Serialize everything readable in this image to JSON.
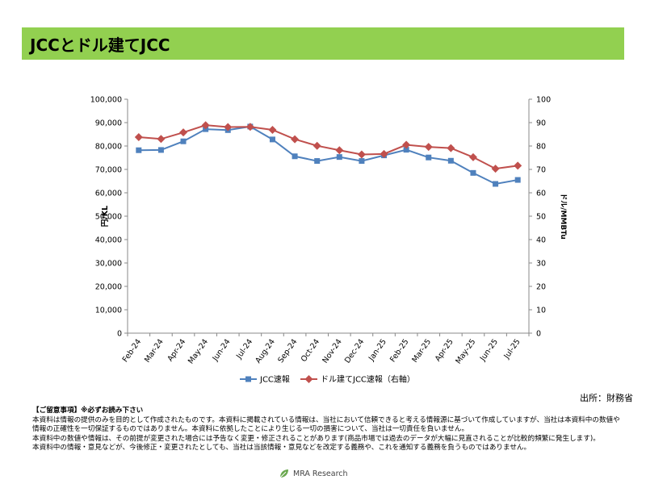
{
  "header": {
    "title": "JCCとドル建てJCC"
  },
  "source_text": "出所：財務省",
  "notice": {
    "heading": "【ご留意事項】※必ずお読み下さい",
    "lines": [
      "本資料は情報の提供のみを目的として作成されたものです。本資料に掲載されている情報は、当社において信頼できると考える情報源に基づいて作成していますが、当社は本資料中の数値や情報の正確性を一切保証するものではありません。本資料に依拠したことにより生じる一切の損害について、当社は一切責任を負いません。",
      "本資料中の数値や情報は、その前提が変更された場合には予告なく変更・修正されることがあります(商品市場では過去のデータが大幅に見直されることが比較的頻繁に発生します)。",
      "本資料中の情報・意見などが、今後修正・変更されたとしても、当社は当該情報・意見などを改定する義務や、これを通知する義務を負うものではありません。"
    ]
  },
  "footer": {
    "brand": "MRA Research"
  },
  "chart_data": {
    "type": "line",
    "categories": [
      "Feb-24",
      "Mar-24",
      "Apr-24",
      "May-24",
      "Jun-24",
      "Jul-24",
      "Aug-24",
      "Sep-24",
      "Oct-24",
      "Nov-24",
      "Dec-24",
      "Jan-25",
      "Feb-25",
      "Mar-25",
      "Apr-25",
      "May-25",
      "Jun-25",
      "Jul-25"
    ],
    "series": [
      {
        "name": "JCC速報",
        "axis": "left",
        "color": "#4f81bd",
        "marker": "square",
        "values": [
          78200,
          78300,
          82000,
          87200,
          86800,
          88300,
          82800,
          75600,
          73600,
          75300,
          73600,
          76000,
          78400,
          75100,
          73700,
          68500,
          63800,
          65500
        ]
      },
      {
        "name": "ドル建てJCC速報（右軸）",
        "axis": "right",
        "color": "#c0504d",
        "marker": "diamond",
        "values": [
          83.8,
          83.0,
          85.8,
          88.9,
          88.1,
          88.2,
          86.9,
          82.9,
          80.1,
          78.2,
          76.4,
          76.6,
          80.5,
          79.6,
          79.1,
          75.2,
          70.3,
          71.6
        ]
      }
    ],
    "ylabel_left": "円/KL",
    "ylabel_right": "ドル/MMBTu",
    "ylim_left": [
      0,
      100000
    ],
    "ylim_right": [
      0,
      100
    ],
    "yticks_left": [
      "0",
      "10,000",
      "20,000",
      "30,000",
      "40,000",
      "50,000",
      "60,000",
      "70,000",
      "80,000",
      "90,000",
      "100,000"
    ],
    "yticks_right": [
      "0",
      "10",
      "20",
      "30",
      "40",
      "50",
      "60",
      "70",
      "80",
      "90",
      "100"
    ],
    "grid": false,
    "legend": "bottom-center"
  }
}
